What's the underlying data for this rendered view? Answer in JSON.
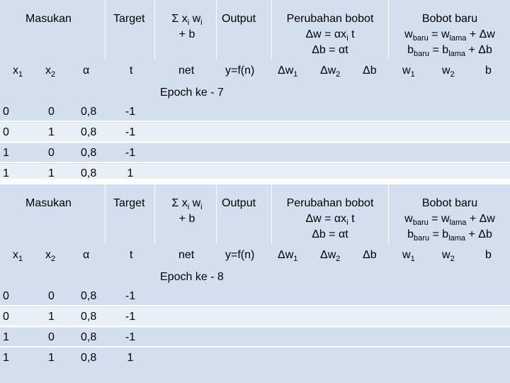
{
  "headers": {
    "masukan": "Masukan",
    "target": "Target",
    "sum_line1": "Σ xi wi",
    "sum_line2": "+ b",
    "output": "Output",
    "perubahan_title": "Perubahan bobot",
    "perubahan_dw": "Δw = αxi t",
    "perubahan_db": "Δb = αt",
    "bobot_title": "Bobot baru",
    "bobot_w": "wbaru = wlama + Δw",
    "bobot_b": "bbaru = blama + Δb"
  },
  "columns": {
    "x1": "x1",
    "x2": "x2",
    "alpha": "α",
    "t": "t",
    "net": "net",
    "y": "y=f(n)",
    "dw1": "Δw1",
    "dw2": "Δw2",
    "db": "Δb",
    "w1": "w1",
    "w2": "w2",
    "b": "b"
  },
  "blocks": [
    {
      "epoch_label": "Epoch ke - 7",
      "rows": [
        {
          "x1": "0",
          "x2": "0",
          "alpha": "0,8",
          "t": "-1"
        },
        {
          "x1": "0",
          "x2": "1",
          "alpha": "0,8",
          "t": "-1"
        },
        {
          "x1": "1",
          "x2": "0",
          "alpha": "0,8",
          "t": "-1"
        },
        {
          "x1": "1",
          "x2": "1",
          "alpha": "0,8",
          "t": "1"
        }
      ]
    },
    {
      "epoch_label": "Epoch ke - 8",
      "rows": [
        {
          "x1": "0",
          "x2": "0",
          "alpha": "0,8",
          "t": "-1"
        },
        {
          "x1": "0",
          "x2": "1",
          "alpha": "0,8",
          "t": "-1"
        },
        {
          "x1": "1",
          "x2": "0",
          "alpha": "0,8",
          "t": "-1"
        },
        {
          "x1": "1",
          "x2": "1",
          "alpha": "0,8",
          "t": "1"
        }
      ]
    }
  ]
}
